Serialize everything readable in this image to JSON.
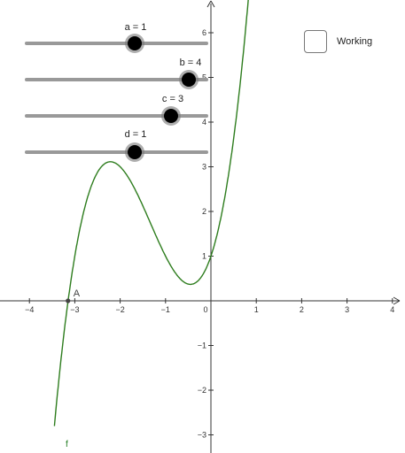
{
  "sliders": [
    {
      "name": "a",
      "label": "a = 1",
      "value": 1
    },
    {
      "name": "b",
      "label": "b = 4",
      "value": 4
    },
    {
      "name": "c",
      "label": "c = 3",
      "value": 3
    },
    {
      "name": "d",
      "label": "d = 1",
      "value": 1
    }
  ],
  "checkbox": {
    "label": "Working",
    "checked": false
  },
  "function": {
    "label": "f",
    "color": "#2e7d1e"
  },
  "point": {
    "label": "A",
    "x": -3.15,
    "y": 0
  },
  "axes": {
    "x_ticks": [
      "−4",
      "−3",
      "−2",
      "−1",
      "0",
      "1",
      "2",
      "3",
      "4"
    ],
    "y_ticks": [
      "6",
      "5",
      "4",
      "3",
      "2",
      "1",
      "−1",
      "−2",
      "−3"
    ],
    "xlim": [
      -4.6,
      4.3
    ],
    "ylim": [
      -3.4,
      6.7
    ]
  },
  "colors": {
    "slider_track": "#999999",
    "knob": "#000000",
    "axis": "#333333"
  }
}
